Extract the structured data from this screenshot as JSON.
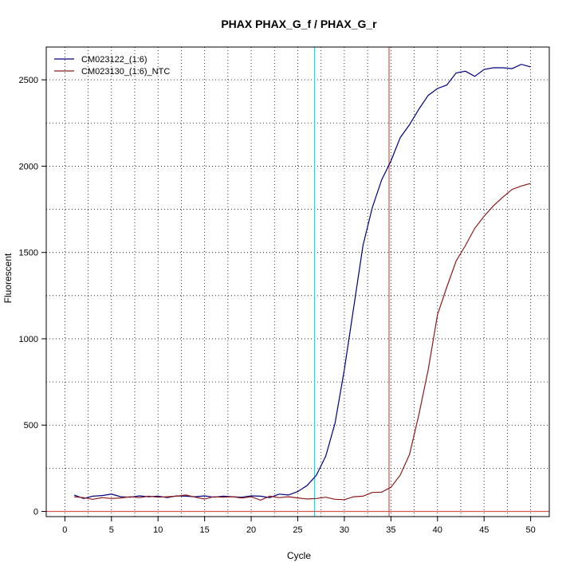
{
  "chart_data": {
    "type": "line",
    "title": "PHAX  PHAX_G_f / PHAX_G_r",
    "xlabel": "Cycle",
    "ylabel": "Fluorescent",
    "xlim": [
      -2,
      52
    ],
    "ylim": [
      -30,
      2690
    ],
    "x_ticks": [
      0,
      5,
      10,
      15,
      20,
      25,
      30,
      35,
      40,
      45,
      50
    ],
    "y_ticks": [
      0,
      500,
      1000,
      1500,
      2000,
      2500
    ],
    "grid": true,
    "legend_position": "top-left",
    "reference_lines": {
      "vertical": [
        {
          "x": 26.8,
          "color": "#00e5ee"
        },
        {
          "x": 34.8,
          "color": "#d9534f"
        }
      ],
      "horizontal": [
        {
          "y": 0,
          "color": "#d9534f"
        }
      ]
    },
    "series": [
      {
        "name": "CM023122_(1:6)",
        "color": "#000080",
        "x": [
          1,
          2,
          3,
          4,
          5,
          6,
          7,
          8,
          9,
          10,
          11,
          12,
          13,
          14,
          15,
          16,
          17,
          18,
          19,
          20,
          21,
          22,
          23,
          24,
          25,
          26,
          27,
          28,
          29,
          30,
          31,
          32,
          33,
          34,
          35,
          36,
          37,
          38,
          39,
          40,
          41,
          42,
          43,
          44,
          45,
          46,
          47,
          48,
          49,
          50
        ],
        "values": [
          95,
          75,
          88,
          92,
          100,
          85,
          82,
          90,
          85,
          88,
          80,
          90,
          88,
          85,
          90,
          82,
          88,
          85,
          82,
          90,
          88,
          80,
          100,
          95,
          115,
          150,
          210,
          320,
          510,
          820,
          1180,
          1540,
          1760,
          1920,
          2030,
          2165,
          2240,
          2330,
          2410,
          2450,
          2470,
          2540,
          2550,
          2520,
          2560,
          2570,
          2570,
          2565,
          2590,
          2575
        ]
      },
      {
        "name": "CM023130_(1:6)_NTC",
        "color": "#8b1a1a",
        "x": [
          1,
          2,
          3,
          4,
          5,
          6,
          7,
          8,
          9,
          10,
          11,
          12,
          13,
          14,
          15,
          16,
          17,
          18,
          19,
          20,
          21,
          22,
          23,
          24,
          25,
          26,
          27,
          28,
          29,
          30,
          31,
          32,
          33,
          34,
          35,
          36,
          37,
          38,
          39,
          40,
          41,
          42,
          43,
          44,
          45,
          46,
          47,
          48,
          49,
          50
        ],
        "values": [
          85,
          80,
          70,
          80,
          75,
          78,
          85,
          80,
          88,
          82,
          85,
          88,
          95,
          82,
          72,
          85,
          82,
          85,
          78,
          85,
          65,
          88,
          80,
          85,
          78,
          72,
          75,
          82,
          70,
          68,
          85,
          88,
          110,
          112,
          140,
          210,
          330,
          560,
          820,
          1140,
          1300,
          1450,
          1540,
          1640,
          1710,
          1770,
          1820,
          1865,
          1885,
          1900
        ]
      }
    ]
  }
}
